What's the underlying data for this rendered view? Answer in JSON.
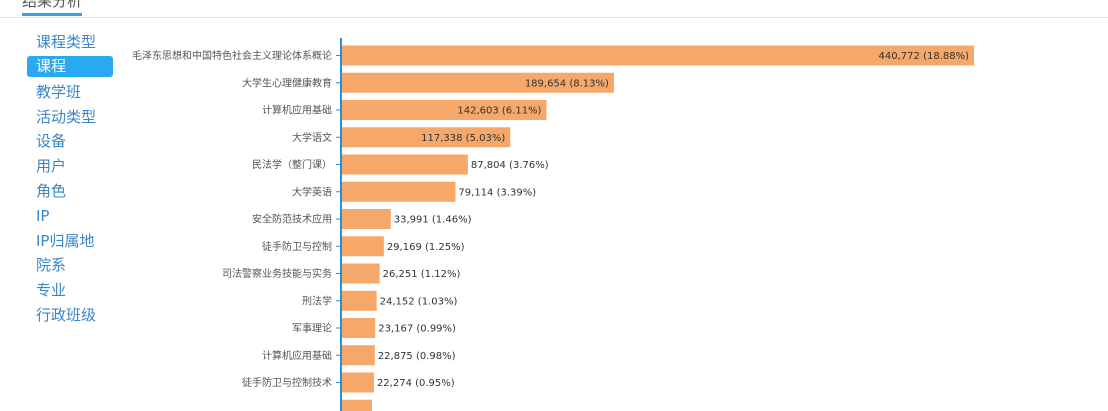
{
  "header": {
    "title": "结果分析"
  },
  "sidebar": {
    "items": [
      {
        "label": "课程类型",
        "active": false
      },
      {
        "label": "课程",
        "active": true
      },
      {
        "label": "教学班",
        "active": false
      },
      {
        "label": "活动类型",
        "active": false
      },
      {
        "label": "设备",
        "active": false
      },
      {
        "label": "用户",
        "active": false
      },
      {
        "label": "角色",
        "active": false
      },
      {
        "label": "IP",
        "active": false
      },
      {
        "label": "IP归属地",
        "active": false
      },
      {
        "label": "院系",
        "active": false
      },
      {
        "label": "专业",
        "active": false
      },
      {
        "label": "行政班级",
        "active": false
      }
    ]
  },
  "colors": {
    "bar": "#f5a86a",
    "axis": "#2b8fd4",
    "accent": "#29a9f0"
  },
  "chart_data": {
    "type": "bar",
    "orientation": "horizontal",
    "categories": [
      "毛泽东思想和中国特色社会主义理论体系概论",
      "大学生心理健康教育",
      "计算机应用基础",
      "大学语文",
      "民法学（整门课）",
      "大学英语",
      "安全防范技术应用",
      "徒手防卫与控制",
      "司法警察业务技能与实务",
      "刑法学",
      "军事理论",
      "计算机应用基础",
      "徒手防卫与控制技术"
    ],
    "values": [
      440772,
      189654,
      142603,
      117338,
      87804,
      79114,
      33991,
      29169,
      26251,
      24152,
      23167,
      22875,
      22274
    ],
    "value_labels": [
      "440,772 (18.88%)",
      "189,654 (8.13%)",
      "142,603 (6.11%)",
      "117,338 (5.03%)",
      "87,804 (3.76%)",
      "79,114 (3.39%)",
      "33,991 (1.46%)",
      "29,169 (1.25%)",
      "26,251 (1.12%)",
      "24,152 (1.03%)",
      "23,167 (0.99%)",
      "22,875 (0.98%)",
      "22,274 (0.95%)"
    ]
  }
}
